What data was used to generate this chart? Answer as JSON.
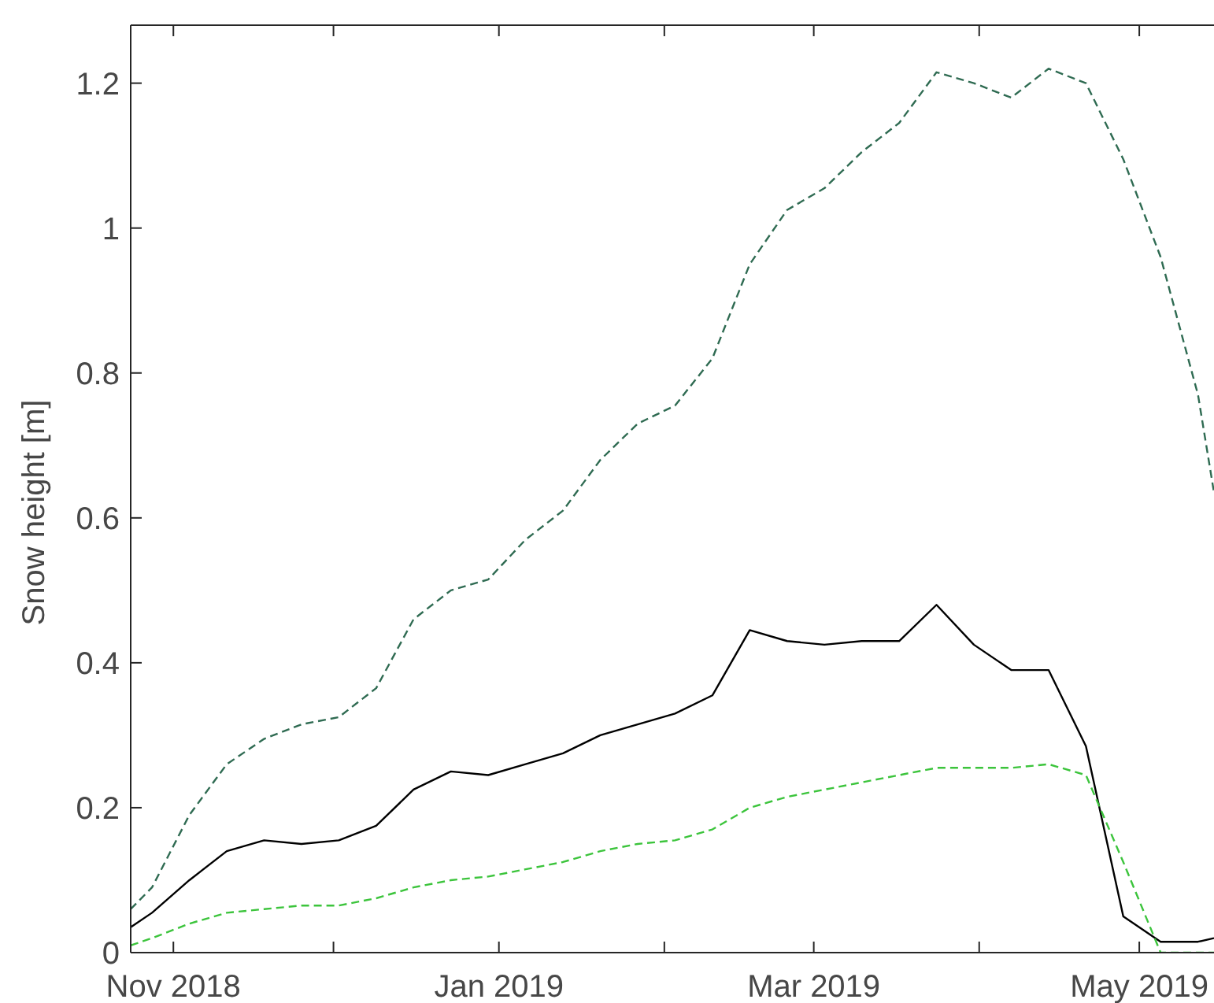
{
  "chart_data": {
    "type": "line",
    "ylabel": "Snow height [m]",
    "x": [
      "2018-10-24",
      "2018-10-28",
      "2018-11-04",
      "2018-11-11",
      "2018-11-18",
      "2018-11-25",
      "2018-12-02",
      "2018-12-09",
      "2018-12-16",
      "2018-12-23",
      "2018-12-30",
      "2019-01-06",
      "2019-01-13",
      "2019-01-20",
      "2019-01-27",
      "2019-02-03",
      "2019-02-10",
      "2019-02-17",
      "2019-02-24",
      "2019-03-03",
      "2019-03-10",
      "2019-03-17",
      "2019-03-24",
      "2019-03-31",
      "2019-04-07",
      "2019-04-14",
      "2019-04-21",
      "2019-04-28",
      "2019-05-05",
      "2019-05-12",
      "2019-05-15"
    ],
    "series": [
      {
        "color": "#2f6b52",
        "line_style": "dashed",
        "values": [
          0.06,
          0.09,
          0.19,
          0.26,
          0.295,
          0.315,
          0.325,
          0.365,
          0.46,
          0.5,
          0.515,
          0.57,
          0.61,
          0.68,
          0.73,
          0.755,
          0.82,
          0.95,
          1.025,
          1.055,
          1.105,
          1.145,
          1.215,
          1.2,
          1.18,
          1.22,
          1.2,
          1.095,
          0.96,
          0.77,
          0.635
        ]
      },
      {
        "color": "#000000",
        "line_style": "solid",
        "values": [
          0.035,
          0.055,
          0.1,
          0.14,
          0.155,
          0.15,
          0.155,
          0.175,
          0.225,
          0.25,
          0.245,
          0.26,
          0.275,
          0.3,
          0.315,
          0.33,
          0.355,
          0.445,
          0.43,
          0.425,
          0.43,
          0.43,
          0.48,
          0.425,
          0.39,
          0.39,
          0.285,
          0.05,
          0.015,
          0.015,
          0.02
        ]
      },
      {
        "color": "#3cc43c",
        "line_style": "dashed",
        "values": [
          0.01,
          0.02,
          0.04,
          0.055,
          0.06,
          0.065,
          0.065,
          0.075,
          0.09,
          0.1,
          0.105,
          0.115,
          0.125,
          0.14,
          0.15,
          0.155,
          0.17,
          0.2,
          0.215,
          0.225,
          0.235,
          0.245,
          0.255,
          0.255,
          0.255,
          0.26,
          0.245,
          0.125,
          0,
          0,
          0
        ]
      }
    ],
    "xlim": [
      "2018-10-24",
      "2019-05-15"
    ],
    "xticks": [
      {
        "value": "2018-11-01",
        "label": "Nov 2018"
      },
      {
        "value": "2018-12-01",
        "label": null
      },
      {
        "value": "2019-01-01",
        "label": "Jan 2019"
      },
      {
        "value": "2019-02-01",
        "label": null
      },
      {
        "value": "2019-03-01",
        "label": "Mar 2019"
      },
      {
        "value": "2019-04-01",
        "label": null
      },
      {
        "value": "2019-05-01",
        "label": "May 2019"
      }
    ],
    "ylim": [
      0,
      1.28
    ],
    "yticks": [
      0,
      0.2,
      0.4,
      0.6,
      0.8,
      1,
      1.2
    ]
  }
}
